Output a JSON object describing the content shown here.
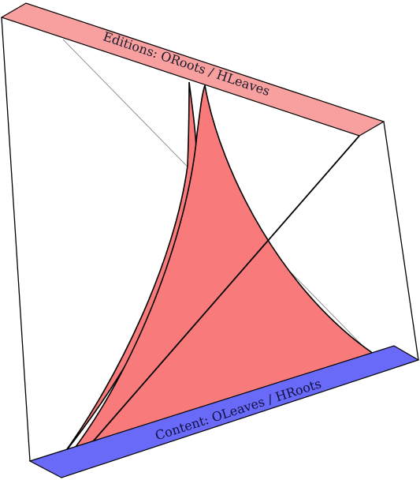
{
  "diagram": {
    "top_bar": {
      "label": "Editions: ORoots / HLeaves",
      "color": "#f8a0a0"
    },
    "bottom_bar": {
      "label": "Content: OLeaves / HRoots",
      "color": "#6a6af8"
    },
    "sheet_color": "#f87a7a",
    "line_color": "#000000"
  }
}
